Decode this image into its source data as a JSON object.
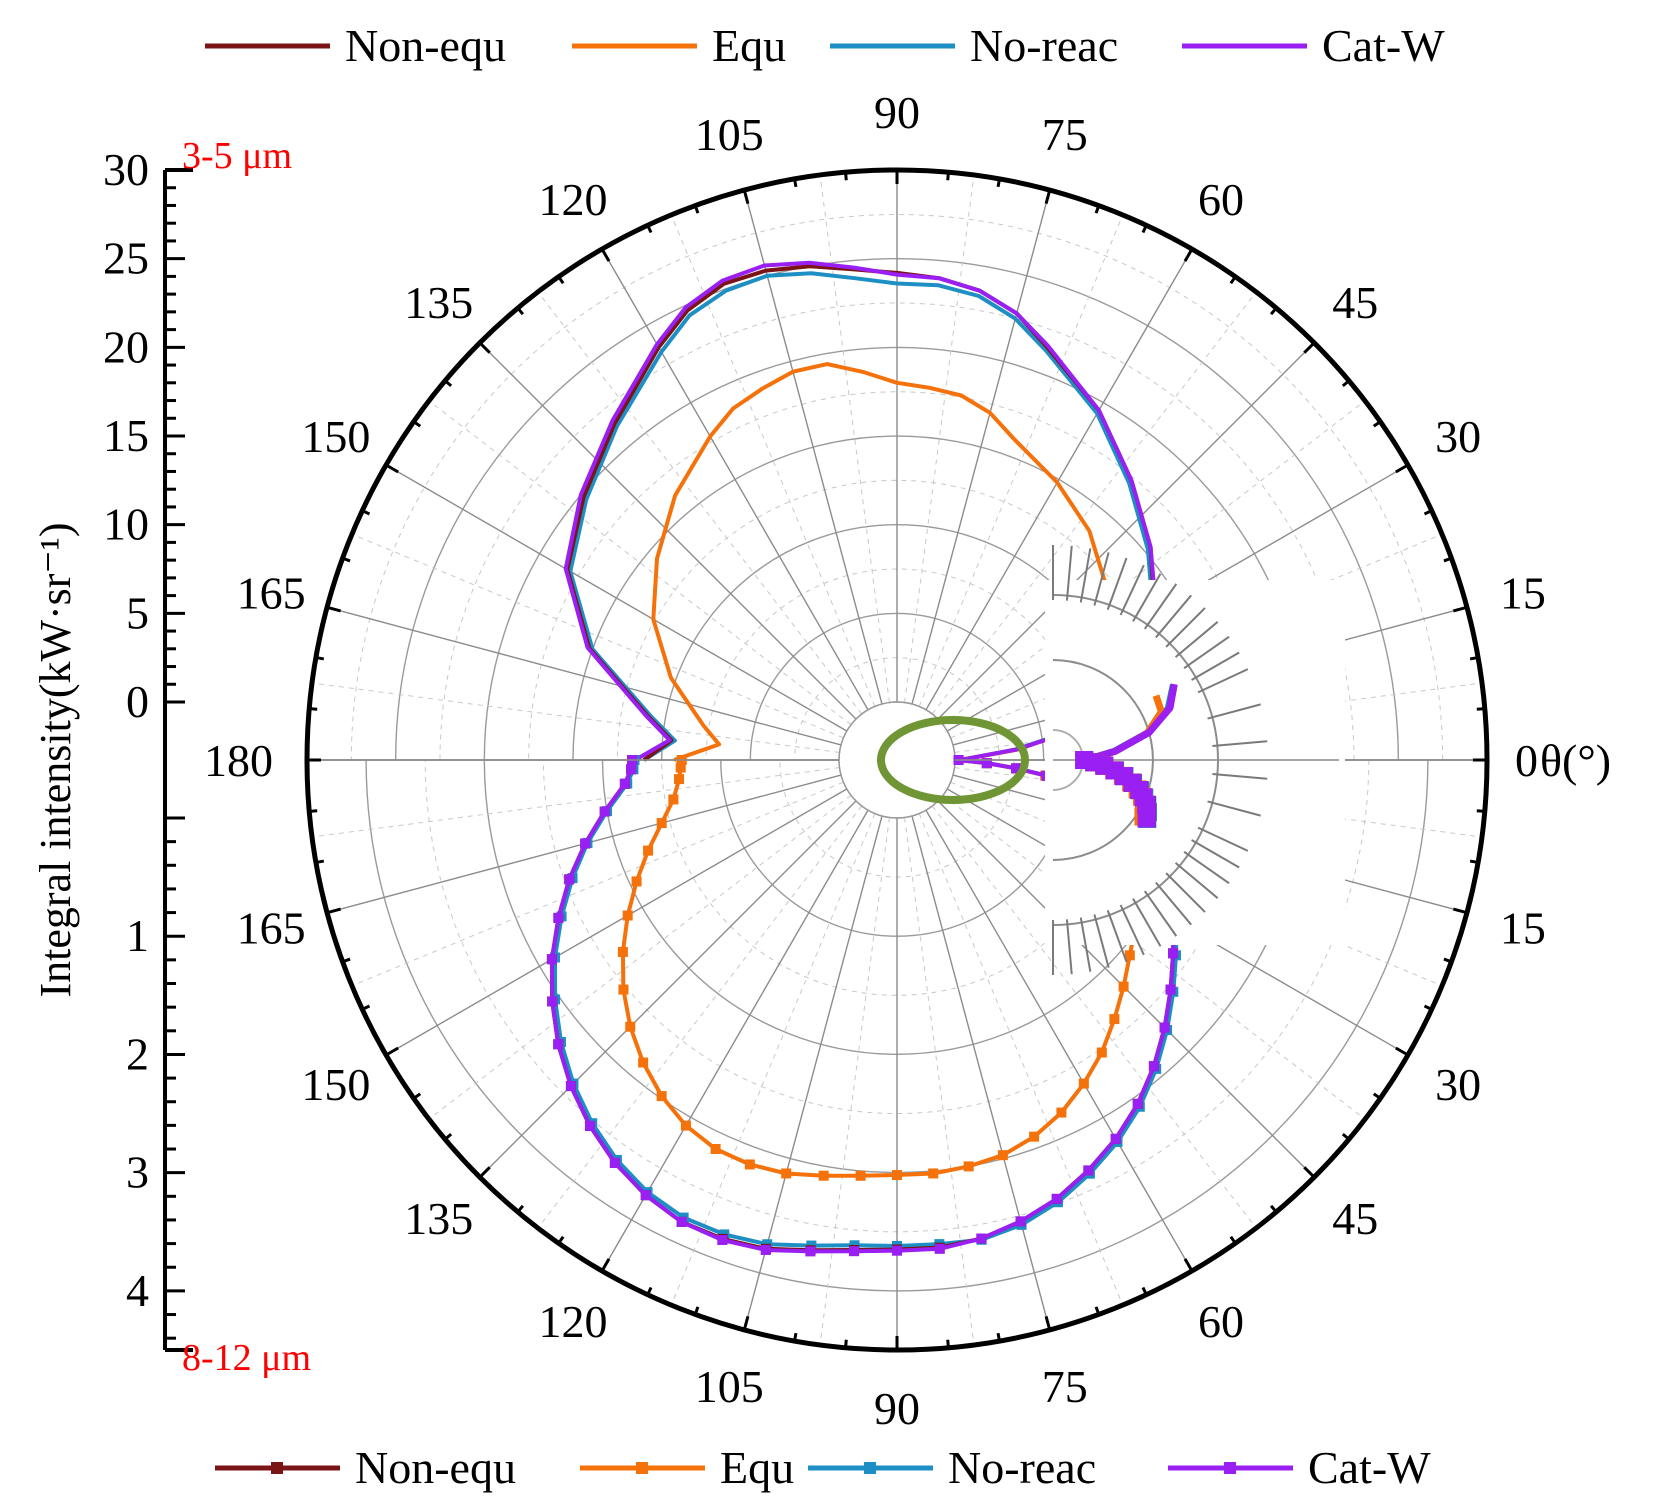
{
  "chart_data": {
    "type": "line",
    "polar": true,
    "angle_unit": "degrees",
    "angle_range": [
      0,
      180
    ],
    "radial_axis_title": "Integral intensity(kW·sr⁻¹)",
    "angular_axis_title": "θ(°)",
    "colors": {
      "Non-equ": "#7b1416",
      "Equ": "#f5720b",
      "No-reac": "#1e8fc4",
      "Cat-W": "#9a1ff2",
      "highlight": "#6f9535",
      "band_label": "#ff0000"
    },
    "panels": [
      {
        "id": "top",
        "band": "3-5 μm",
        "rlim": [
          0,
          30
        ],
        "radial_ticks": [
          "0",
          "5",
          "10",
          "15",
          "20",
          "25",
          "30"
        ],
        "radial_tick_values": [
          0,
          5,
          10,
          15,
          20,
          25,
          30
        ],
        "angle_ticks": [
          "0",
          "15",
          "30",
          "45",
          "60",
          "75",
          "90",
          "105",
          "120",
          "135",
          "150",
          "165",
          "180"
        ],
        "angle_tick_values": [
          0,
          15,
          30,
          45,
          60,
          75,
          90,
          105,
          120,
          135,
          150,
          165,
          180
        ],
        "markers": false,
        "legend": [
          "Non-equ",
          "Equ",
          "No-reac",
          "Cat-W"
        ],
        "theta": [
          0,
          5,
          10,
          15,
          20,
          30,
          40,
          50,
          60,
          70,
          75,
          80,
          85,
          90,
          95,
          100,
          105,
          110,
          115,
          120,
          130,
          140,
          150,
          160,
          170,
          175,
          180
        ],
        "series": [
          {
            "name": "Non-equ",
            "values": [
              0.3,
              3.5,
              7.5,
              10.5,
              12.1,
              13.5,
              15.4,
              17.3,
              19.5,
              21.5,
              22.8,
              23.6,
              24.0,
              24.2,
              24.5,
              25.0,
              25.3,
              25.3,
              24.7,
              23.6,
              21.5,
              19.8,
              18.2,
              15.2,
              11.0,
              9.5,
              11.0
            ]
          },
          {
            "name": "Equ",
            "values": [
              0.3,
              3.6,
              7.3,
              9.5,
              9.8,
              10.8,
              12.1,
              13.6,
              14.8,
              16.0,
              17.0,
              17.6,
              17.8,
              18.0,
              18.7,
              19.4,
              19.4,
              19.0,
              18.6,
              17.8,
              16.2,
              14.4,
              12.6,
              10.3,
              7.8,
              6.8,
              9.3
            ]
          },
          {
            "name": "No-reac",
            "values": [
              0.3,
              3.4,
              7.3,
              10.3,
              12.0,
              13.4,
              15.2,
              17.1,
              19.3,
              21.3,
              22.5,
              23.3,
              23.6,
              23.6,
              24.0,
              24.6,
              25.0,
              24.9,
              24.4,
              23.3,
              21.3,
              19.6,
              18.0,
              15.0,
              10.8,
              9.3,
              11.0
            ]
          },
          {
            "name": "Cat-W",
            "values": [
              0.3,
              3.5,
              7.5,
              10.5,
              12.1,
              13.6,
              15.4,
              17.3,
              19.5,
              21.6,
              22.8,
              23.6,
              24.0,
              24.1,
              24.6,
              25.2,
              25.6,
              25.5,
              24.9,
              23.8,
              21.7,
              20.0,
              18.3,
              15.3,
              11.1,
              9.6,
              11.5
            ]
          }
        ]
      },
      {
        "id": "bottom",
        "band": "8-12 μm",
        "rlim": [
          0,
          4.5
        ],
        "radial_ticks": [
          "0",
          "1",
          "2",
          "3",
          "4"
        ],
        "radial_tick_values": [
          0,
          1,
          2,
          3,
          4
        ],
        "angle_ticks": [
          "0",
          "15",
          "30",
          "45",
          "60",
          "75",
          "90",
          "105",
          "120",
          "135",
          "150",
          "165",
          "180"
        ],
        "angle_tick_values": [
          0,
          15,
          30,
          45,
          60,
          75,
          90,
          105,
          120,
          135,
          150,
          165,
          180
        ],
        "markers": true,
        "legend": [
          "Non-equ",
          "Equ",
          "No-reac",
          "Cat-W"
        ],
        "theta": [
          0,
          2,
          4,
          6,
          8,
          10,
          12,
          14,
          16,
          18,
          20,
          25,
          30,
          35,
          40,
          45,
          50,
          55,
          60,
          65,
          70,
          75,
          80,
          85,
          90,
          95,
          100,
          105,
          110,
          115,
          120,
          125,
          130,
          135,
          140,
          145,
          150,
          155,
          160,
          165,
          170,
          175,
          178,
          180
        ],
        "series": [
          {
            "name": "Non-equ",
            "values": [
              0.03,
              0.27,
              0.52,
              0.78,
              1.02,
              1.26,
              1.47,
              1.63,
              1.77,
              1.86,
              1.93,
              2.07,
              2.21,
              2.36,
              2.53,
              2.71,
              2.89,
              3.06,
              3.21,
              3.34,
              3.46,
              3.55,
              3.62,
              3.65,
              3.65,
              3.67,
              3.72,
              3.79,
              3.82,
              3.82,
              3.76,
              3.67,
              3.55,
              3.41,
              3.25,
              3.07,
              2.88,
              2.67,
              2.46,
              2.24,
              2.02,
              1.82,
              1.76,
              1.75
            ]
          },
          {
            "name": "Equ",
            "values": [
              0.03,
              0.27,
              0.52,
              0.77,
              1.0,
              1.23,
              1.43,
              1.59,
              1.7,
              1.78,
              1.84,
              1.86,
              1.89,
              1.97,
              2.08,
              2.22,
              2.37,
              2.53,
              2.67,
              2.8,
              2.9,
              2.97,
              3.0,
              3.02,
              3.02,
              3.04,
              3.08,
              3.13,
              3.15,
              3.14,
              3.08,
              2.98,
              2.85,
              2.7,
              2.53,
              2.34,
              2.14,
              1.94,
              1.75,
              1.57,
              1.43,
              1.36,
              1.34,
              1.33
            ]
          },
          {
            "name": "No-reac",
            "values": [
              0.03,
              0.27,
              0.52,
              0.79,
              1.04,
              1.28,
              1.49,
              1.65,
              1.79,
              1.88,
              1.95,
              2.09,
              2.24,
              2.39,
              2.56,
              2.74,
              2.92,
              3.09,
              3.24,
              3.37,
              3.49,
              3.58,
              3.63,
              3.62,
              3.62,
              3.63,
              3.68,
              3.75,
              3.78,
              3.78,
              3.73,
              3.64,
              3.52,
              3.38,
              3.22,
              3.04,
              2.85,
              2.64,
              2.43,
              2.22,
              2.0,
              1.8,
              1.74,
              1.73
            ]
          },
          {
            "name": "Cat-W",
            "values": [
              0.03,
              0.27,
              0.52,
              0.78,
              1.02,
              1.26,
              1.47,
              1.63,
              1.76,
              1.85,
              1.93,
              2.07,
              2.21,
              2.36,
              2.53,
              2.71,
              2.89,
              3.06,
              3.21,
              3.34,
              3.46,
              3.55,
              3.62,
              3.66,
              3.66,
              3.68,
              3.73,
              3.8,
              3.83,
              3.82,
              3.76,
              3.67,
              3.55,
              3.41,
              3.25,
              3.07,
              2.88,
              2.67,
              2.46,
              2.24,
              2.02,
              1.82,
              1.76,
              1.75
            ]
          }
        ]
      }
    ]
  }
}
